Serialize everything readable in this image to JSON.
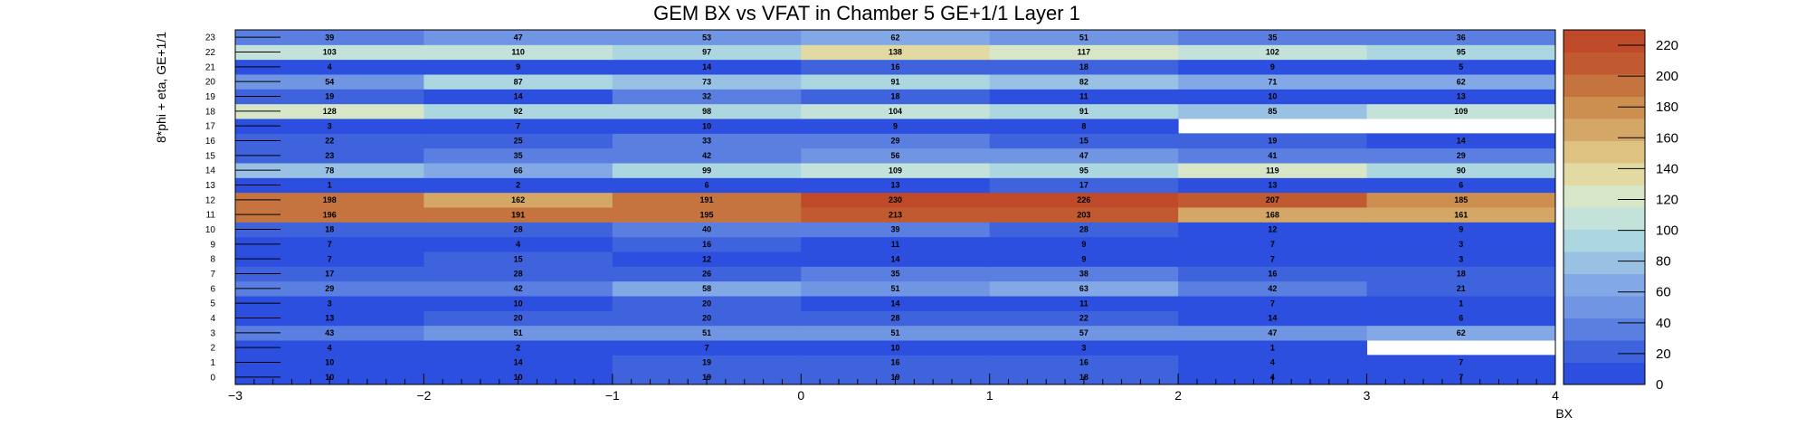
{
  "chart_data": {
    "type": "heatmap",
    "title": "GEM BX vs VFAT in Chamber 5 GE+1/1 Layer 1",
    "xlabel": "BX",
    "ylabel": "8*phi + eta, GE+1/1",
    "xlim": [
      -3,
      4
    ],
    "ylim": [
      0,
      24
    ],
    "x_bins": [
      -3,
      -2,
      -1,
      0,
      1,
      2,
      3
    ],
    "x_ticks": [
      "−3",
      "−2",
      "−1",
      "0",
      "1",
      "2",
      "3",
      "4"
    ],
    "y_ticks": [
      "0",
      "1",
      "2",
      "3",
      "4",
      "5",
      "6",
      "7",
      "8",
      "9",
      "10",
      "11",
      "12",
      "13",
      "14",
      "15",
      "16",
      "17",
      "18",
      "19",
      "20",
      "21",
      "22",
      "23"
    ],
    "z_range": [
      0,
      230
    ],
    "colorbar_ticks": [
      "0",
      "20",
      "40",
      "60",
      "80",
      "100",
      "120",
      "140",
      "160",
      "180",
      "200",
      "220"
    ],
    "colorscale": [
      "#2c4fe0",
      "#3f63dd",
      "#5a7fe0",
      "#6f95e3",
      "#82a9e6",
      "#98c1e4",
      "#acd6e0",
      "#c3e3da",
      "#d8e6c8",
      "#e2d9a3",
      "#ddc282",
      "#d5a766",
      "#cd8f50",
      "#c6743f",
      "#c25a31",
      "#be4a29"
    ],
    "rows": [
      {
        "y": 0,
        "values": [
          10,
          10,
          19,
          19,
          18,
          4,
          7
        ]
      },
      {
        "y": 1,
        "values": [
          10,
          14,
          19,
          16,
          16,
          4,
          7
        ]
      },
      {
        "y": 2,
        "values": [
          4,
          2,
          7,
          10,
          3,
          1,
          null
        ]
      },
      {
        "y": 3,
        "values": [
          43,
          51,
          51,
          51,
          57,
          47,
          62
        ]
      },
      {
        "y": 4,
        "values": [
          13,
          20,
          20,
          28,
          22,
          14,
          6
        ]
      },
      {
        "y": 5,
        "values": [
          3,
          10,
          20,
          14,
          11,
          7,
          1
        ]
      },
      {
        "y": 6,
        "values": [
          29,
          42,
          58,
          51,
          63,
          42,
          21
        ]
      },
      {
        "y": 7,
        "values": [
          17,
          28,
          26,
          35,
          38,
          16,
          18
        ]
      },
      {
        "y": 8,
        "values": [
          7,
          15,
          12,
          14,
          9,
          7,
          3
        ]
      },
      {
        "y": 9,
        "values": [
          7,
          4,
          16,
          11,
          9,
          7,
          3
        ]
      },
      {
        "y": 10,
        "values": [
          18,
          28,
          40,
          39,
          28,
          12,
          9
        ]
      },
      {
        "y": 11,
        "values": [
          196,
          191,
          195,
          213,
          203,
          168,
          161
        ]
      },
      {
        "y": 12,
        "values": [
          198,
          162,
          191,
          230,
          226,
          207,
          185
        ]
      },
      {
        "y": 13,
        "values": [
          1,
          2,
          6,
          13,
          17,
          13,
          6
        ]
      },
      {
        "y": 14,
        "values": [
          78,
          66,
          99,
          109,
          95,
          119,
          90
        ]
      },
      {
        "y": 15,
        "values": [
          23,
          35,
          42,
          56,
          47,
          41,
          29
        ]
      },
      {
        "y": 16,
        "values": [
          22,
          25,
          33,
          29,
          15,
          19,
          14
        ]
      },
      {
        "y": 17,
        "values": [
          3,
          7,
          10,
          9,
          8,
          null,
          null
        ]
      },
      {
        "y": 18,
        "values": [
          128,
          92,
          98,
          104,
          91,
          85,
          109
        ]
      },
      {
        "y": 19,
        "values": [
          19,
          14,
          32,
          18,
          11,
          10,
          13
        ]
      },
      {
        "y": 20,
        "values": [
          54,
          87,
          73,
          91,
          82,
          71,
          62
        ]
      },
      {
        "y": 21,
        "values": [
          4,
          9,
          14,
          16,
          18,
          9,
          5
        ]
      },
      {
        "y": 22,
        "values": [
          103,
          110,
          97,
          138,
          117,
          102,
          95
        ]
      },
      {
        "y": 23,
        "values": [
          39,
          47,
          53,
          62,
          51,
          35,
          36
        ]
      }
    ],
    "legend": "colorbar at right",
    "grid": false
  }
}
